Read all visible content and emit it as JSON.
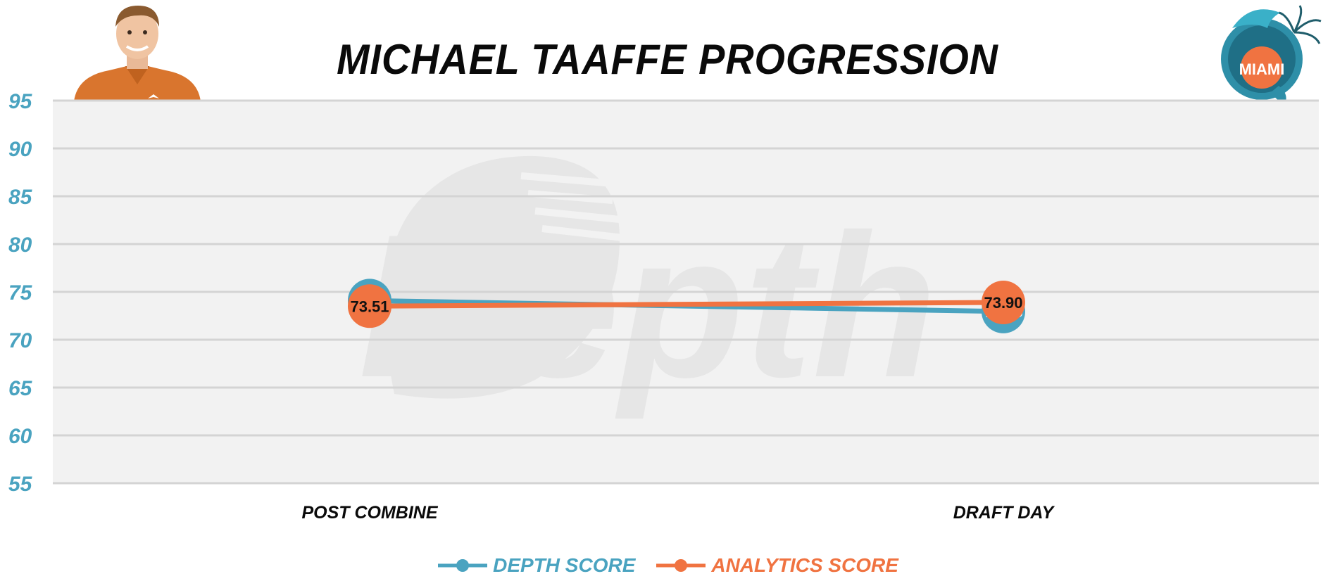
{
  "title": "MICHAEL TAAFFE PROGRESSION",
  "colors": {
    "depth": "#4aa3c0",
    "analytics": "#f07341",
    "axis_text": "#4aa3c0",
    "plot_bg": "#f2f2f2",
    "grid": "#d4d4d4"
  },
  "logo_text": "MIAMI",
  "watermark_text": "Depth",
  "chart_data": {
    "type": "line",
    "categories": [
      "POST COMBINE",
      "DRAFT DAY"
    ],
    "series": [
      {
        "name": "DEPTH SCORE",
        "values": [
          74.09,
          72.95
        ],
        "color": "#4aa3c0",
        "label_color": "#ffffff"
      },
      {
        "name": "ANALYTICS SCORE",
        "values": [
          73.51,
          73.9
        ],
        "color": "#f07341",
        "label_color": "#111111"
      }
    ],
    "ylim": [
      55,
      95
    ],
    "yticks": [
      55,
      60,
      65,
      70,
      75,
      80,
      85,
      90,
      95
    ],
    "grid": true,
    "legend": "bottom-center"
  }
}
